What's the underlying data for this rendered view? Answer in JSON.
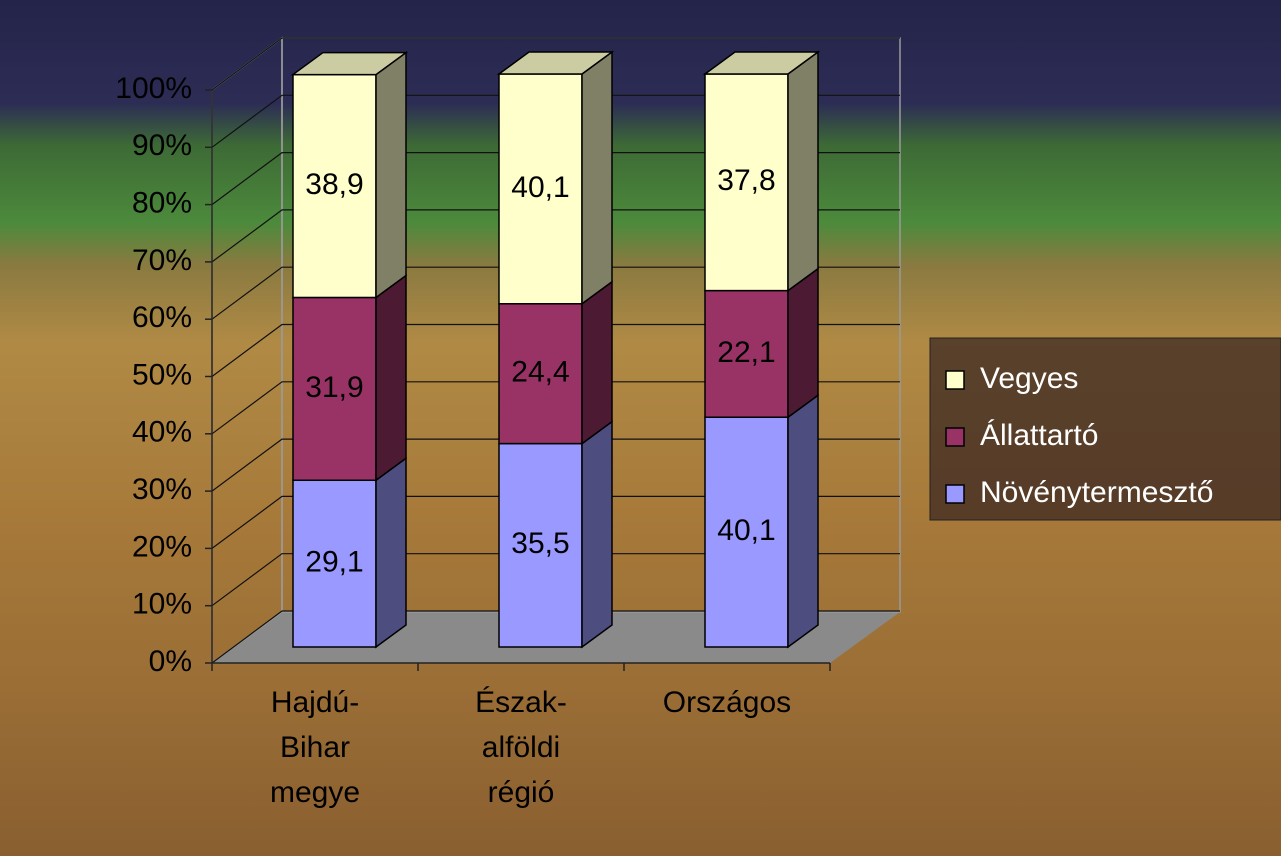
{
  "chart_data": {
    "type": "bar3d_stacked",
    "categories": [
      "Hajdú-Bihar megye",
      "Észak-alföldi régió",
      "Országos"
    ],
    "series": [
      {
        "name": "Növénytermesztő",
        "color": "#9999ff",
        "values": [
          29.1,
          35.5,
          40.1
        ],
        "value_labels": [
          "29,1",
          "35,5",
          "40,1"
        ]
      },
      {
        "name": "Állattartó",
        "color": "#993366",
        "values": [
          31.9,
          24.4,
          22.1
        ],
        "value_labels": [
          "31,9",
          "24,4",
          "22,1"
        ]
      },
      {
        "name": "Vegyes",
        "color": "#ffffcc",
        "values": [
          38.9,
          40.1,
          37.8
        ],
        "value_labels": [
          "38,9",
          "40,1",
          "37,8"
        ]
      }
    ],
    "ylim": [
      0,
      100
    ],
    "yticks": [
      {
        "value": 0,
        "label": "0%"
      },
      {
        "value": 10,
        "label": "10%"
      },
      {
        "value": 20,
        "label": "20%"
      },
      {
        "value": 30,
        "label": "30%"
      },
      {
        "value": 40,
        "label": "40%"
      },
      {
        "value": 50,
        "label": "50%"
      },
      {
        "value": 60,
        "label": "60%"
      },
      {
        "value": 70,
        "label": "70%"
      },
      {
        "value": 80,
        "label": "80%"
      },
      {
        "value": 90,
        "label": "90%"
      },
      {
        "value": 100,
        "label": "100%"
      }
    ],
    "grid": true,
    "legend": "right"
  }
}
